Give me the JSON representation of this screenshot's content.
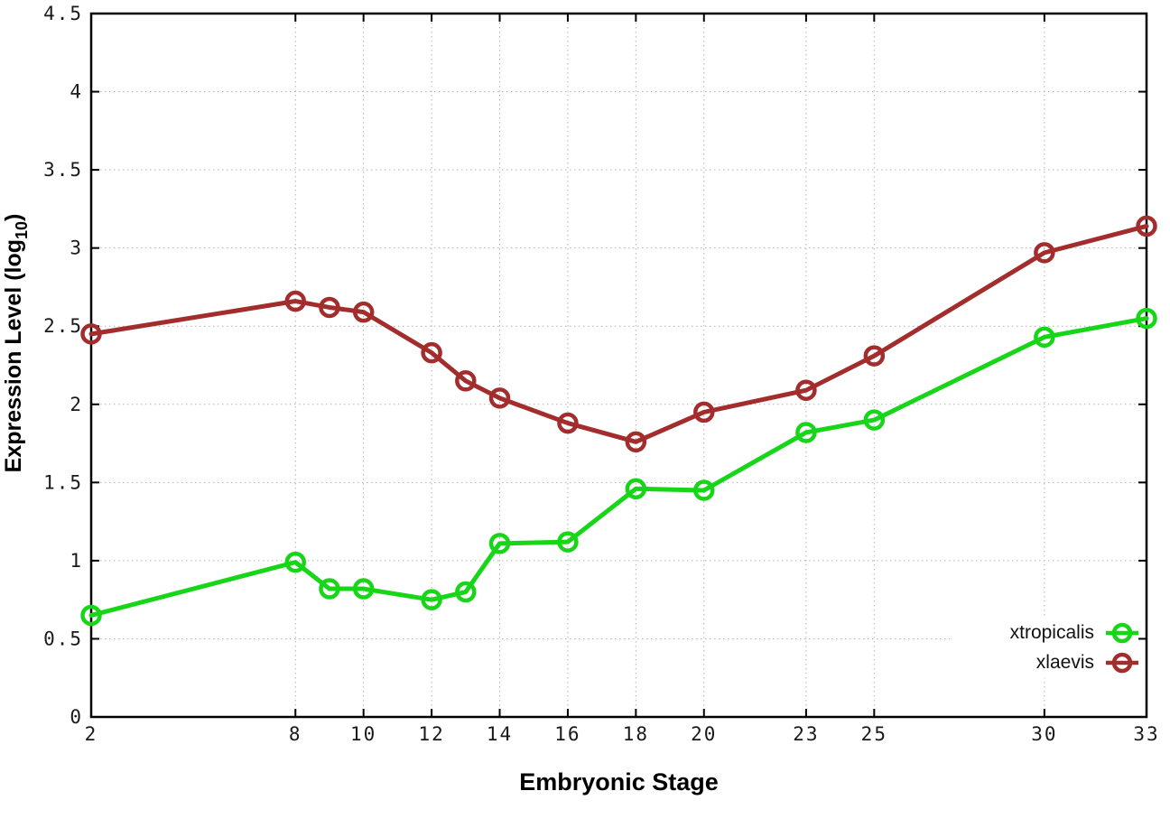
{
  "chart_data": {
    "type": "line",
    "title": "",
    "xlabel": "Embryonic Stage",
    "ylabel": {
      "prefix": "Expression Level (log",
      "sub": "10",
      "suffix": ")"
    },
    "x": [
      2,
      8,
      9,
      10,
      12,
      13,
      14,
      16,
      18,
      20,
      23,
      25,
      30,
      33
    ],
    "series": [
      {
        "name": "xtropicalis",
        "color": "#17d517",
        "marker": "open-circle",
        "values": [
          0.65,
          0.99,
          0.82,
          0.82,
          0.75,
          0.8,
          1.11,
          1.12,
          1.46,
          1.45,
          1.82,
          1.9,
          2.43,
          2.55
        ]
      },
      {
        "name": "xlaevis",
        "color": "#a32c2c",
        "marker": "open-circle",
        "values": [
          2.45,
          2.66,
          2.62,
          2.59,
          2.33,
          2.15,
          2.04,
          1.88,
          1.76,
          1.95,
          2.09,
          2.31,
          2.97,
          3.14
        ]
      }
    ],
    "xticks": [
      2,
      8,
      10,
      12,
      14,
      16,
      18,
      20,
      23,
      25,
      30,
      33
    ],
    "yticks": [
      0,
      0.5,
      1,
      1.5,
      2,
      2.5,
      3,
      3.5,
      4,
      4.5
    ],
    "xlim": [
      2,
      33
    ],
    "ylim": [
      0,
      4.5
    ],
    "grid": "dotted",
    "legend_position": "bottom-right"
  },
  "colors": {
    "background": "#ffffff",
    "axis": "#000000",
    "grid": "#b3b3b3",
    "tick_label": "#1a1a1a"
  }
}
